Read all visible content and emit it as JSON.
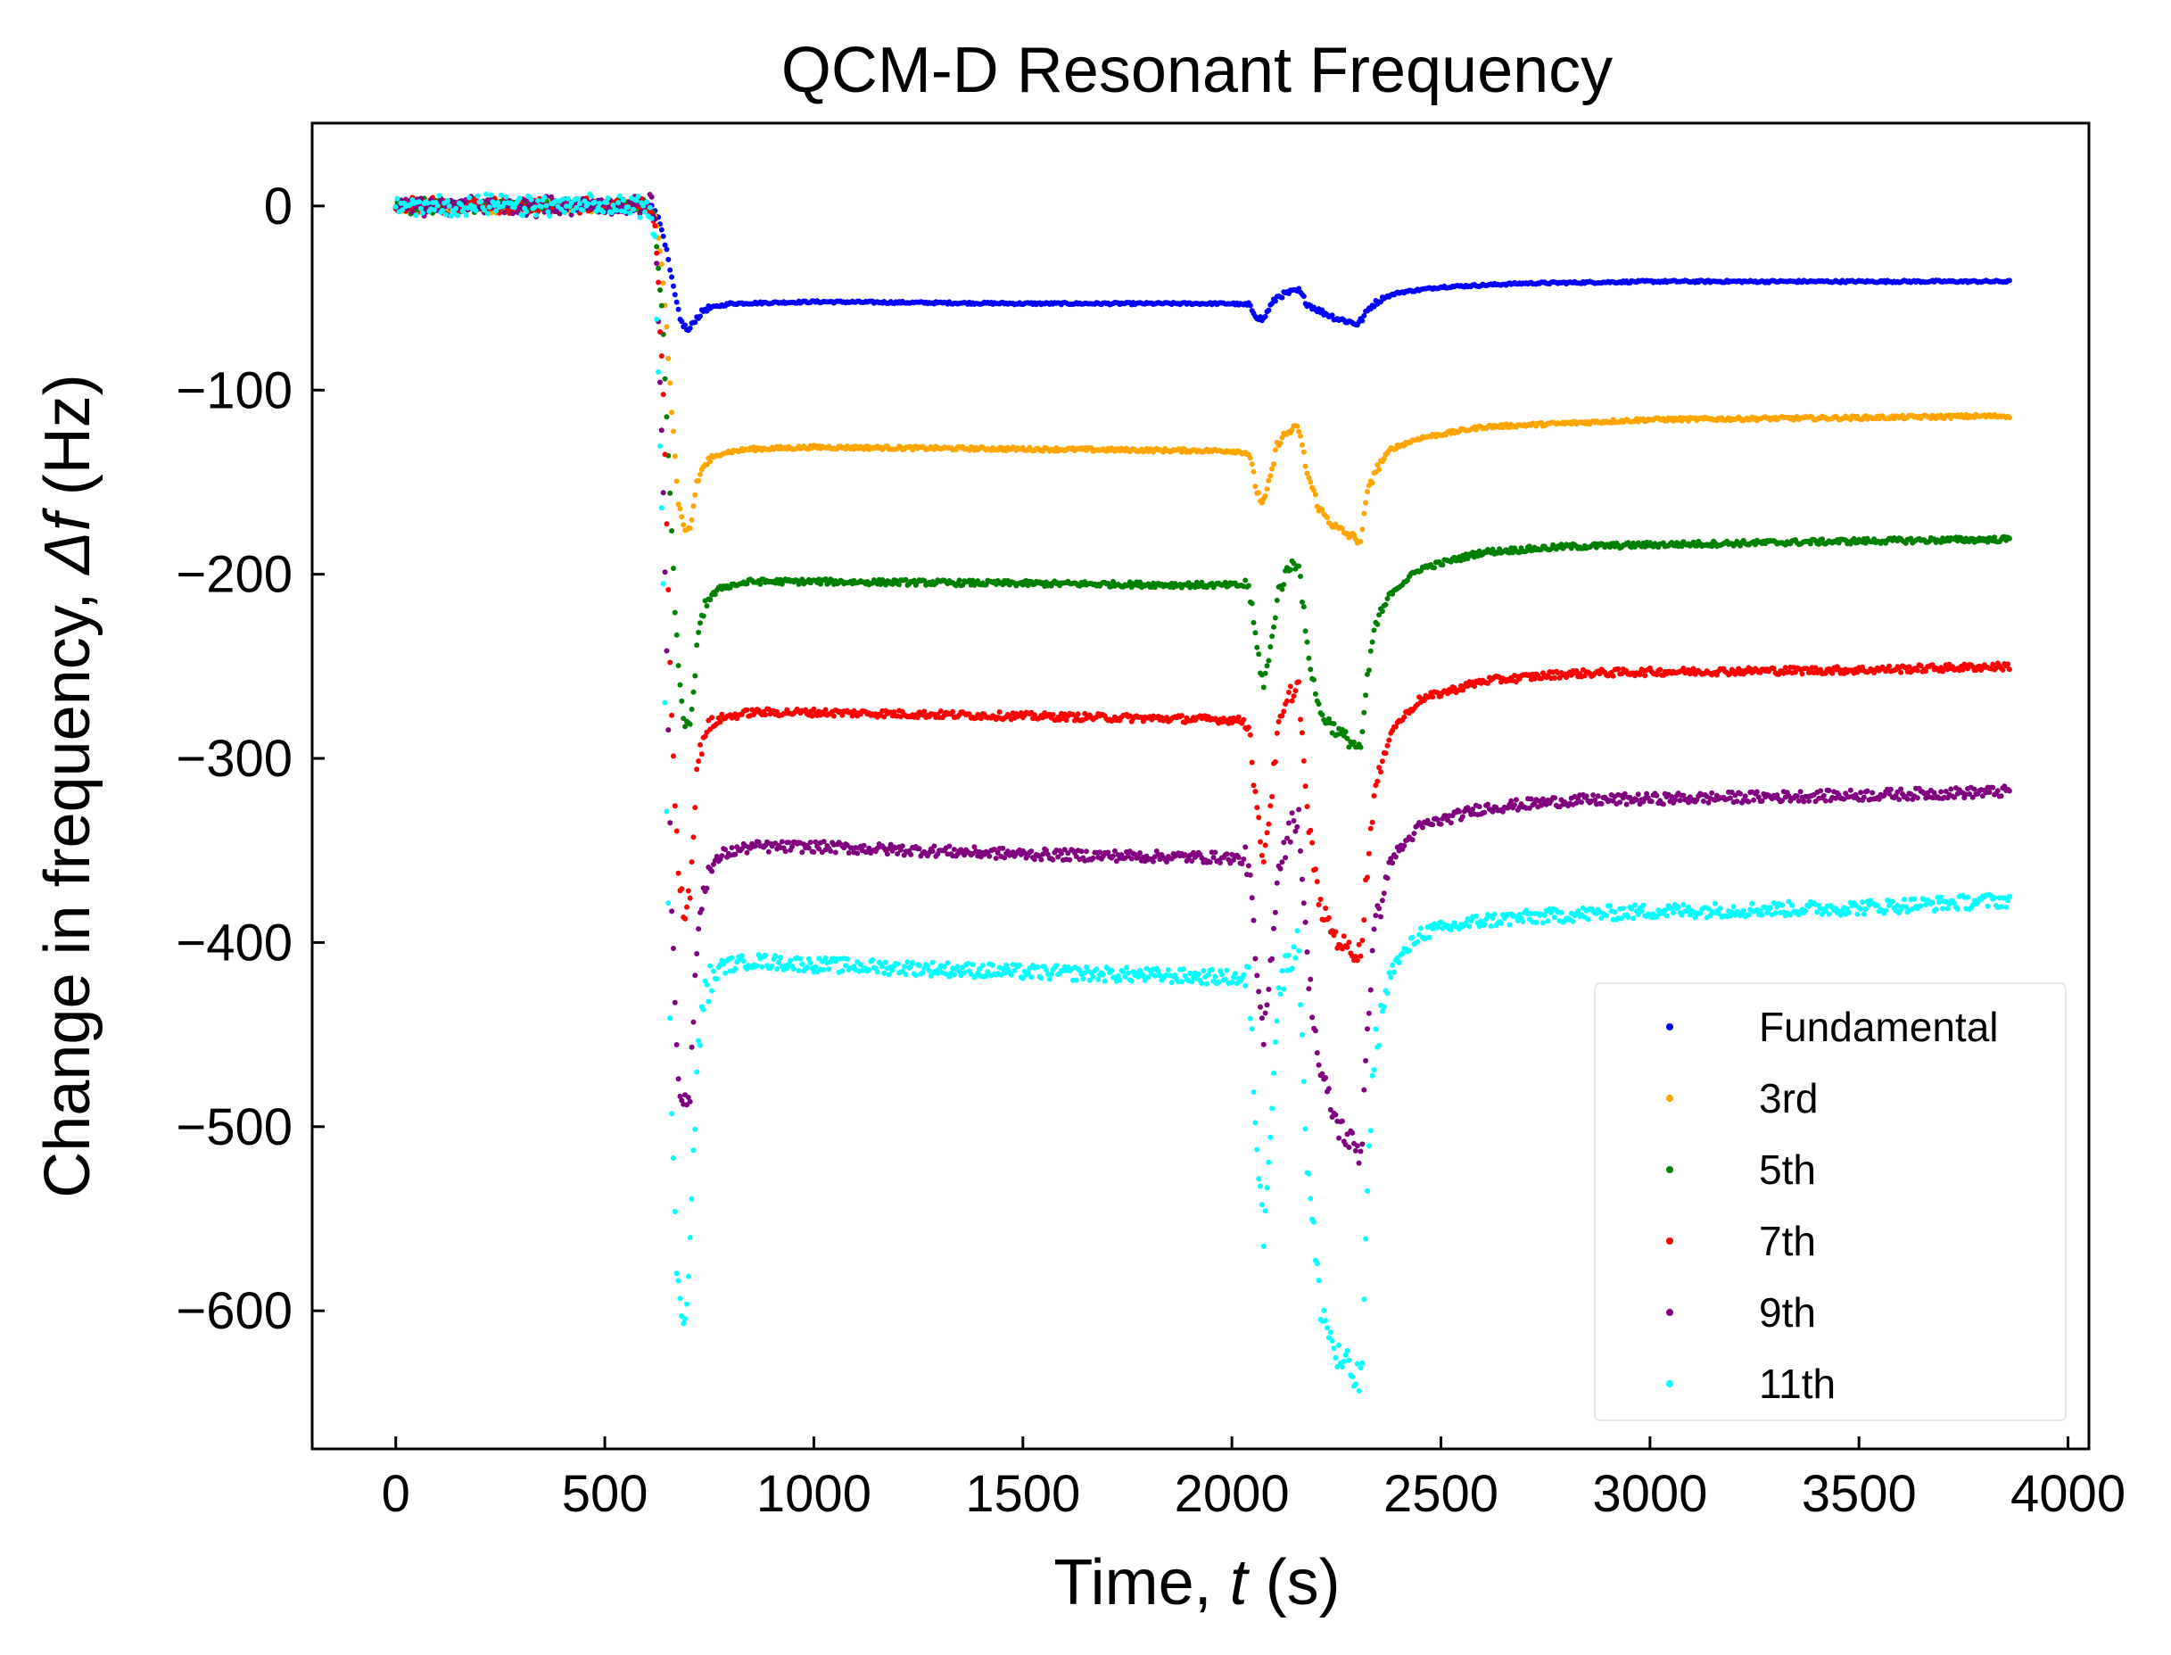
{
  "chart_data": {
    "type": "scatter",
    "title": "QCM-D Resonant Frequency",
    "xlabel_prefix": "Time, ",
    "xlabel_var": "t",
    "xlabel_suffix": " (s)",
    "ylabel_prefix": "Change in frequency, ",
    "ylabel_var": "Δf",
    "ylabel_suffix": " (Hz)",
    "xlim": [
      -200,
      4050
    ],
    "ylim": [
      -675,
      45
    ],
    "xticks": [
      0,
      500,
      1000,
      1500,
      2000,
      2500,
      3000,
      3500,
      4000
    ],
    "xtick_labels": [
      "0",
      "500",
      "1000",
      "1500",
      "2000",
      "2500",
      "3000",
      "3500",
      "4000"
    ],
    "yticks": [
      0,
      -100,
      -200,
      -300,
      -400,
      -500,
      -600
    ],
    "ytick_labels": [
      "0",
      "−100",
      "−200",
      "−300",
      "−400",
      "−500",
      "−600"
    ],
    "grid": false,
    "legend_position": "lower-right",
    "series": [
      {
        "name": "Fundamental",
        "color": "#0000ff",
        "noise": 0.6,
        "points": [
          [
            0,
            0
          ],
          [
            600,
            0
          ],
          [
            620,
            -2
          ],
          [
            640,
            -15
          ],
          [
            660,
            -40
          ],
          [
            680,
            -62
          ],
          [
            700,
            -68
          ],
          [
            715,
            -62
          ],
          [
            740,
            -56
          ],
          [
            800,
            -53
          ],
          [
            1000,
            -52
          ],
          [
            1500,
            -53
          ],
          [
            2000,
            -53
          ],
          [
            2040,
            -54
          ],
          [
            2060,
            -60
          ],
          [
            2075,
            -62
          ],
          [
            2090,
            -55
          ],
          [
            2110,
            -49
          ],
          [
            2140,
            -47
          ],
          [
            2160,
            -46
          ],
          [
            2180,
            -53
          ],
          [
            2210,
            -57
          ],
          [
            2250,
            -61
          ],
          [
            2300,
            -64
          ],
          [
            2310,
            -62
          ],
          [
            2330,
            -55
          ],
          [
            2360,
            -50
          ],
          [
            2400,
            -47
          ],
          [
            2500,
            -44
          ],
          [
            2700,
            -42
          ],
          [
            3000,
            -41
          ],
          [
            3500,
            -41
          ],
          [
            3860,
            -41
          ]
        ]
      },
      {
        "name": "3rd",
        "color": "#ffa500",
        "noise": 1.0,
        "points": [
          [
            0,
            0
          ],
          [
            600,
            0
          ],
          [
            620,
            -5
          ],
          [
            640,
            -40
          ],
          [
            660,
            -110
          ],
          [
            675,
            -160
          ],
          [
            690,
            -178
          ],
          [
            705,
            -175
          ],
          [
            720,
            -150
          ],
          [
            740,
            -140
          ],
          [
            780,
            -134
          ],
          [
            850,
            -132
          ],
          [
            1000,
            -131
          ],
          [
            1500,
            -132
          ],
          [
            2000,
            -133
          ],
          [
            2040,
            -134
          ],
          [
            2060,
            -155
          ],
          [
            2075,
            -162
          ],
          [
            2090,
            -150
          ],
          [
            2110,
            -128
          ],
          [
            2140,
            -122
          ],
          [
            2160,
            -121
          ],
          [
            2180,
            -145
          ],
          [
            2210,
            -165
          ],
          [
            2250,
            -175
          ],
          [
            2290,
            -180
          ],
          [
            2310,
            -182
          ],
          [
            2320,
            -160
          ],
          [
            2340,
            -145
          ],
          [
            2380,
            -132
          ],
          [
            2450,
            -126
          ],
          [
            2600,
            -120
          ],
          [
            2800,
            -118
          ],
          [
            3000,
            -116
          ],
          [
            3500,
            -115
          ],
          [
            3860,
            -114
          ]
        ]
      },
      {
        "name": "5th",
        "color": "#008000",
        "noise": 1.5,
        "points": [
          [
            0,
            0
          ],
          [
            600,
            0
          ],
          [
            620,
            -8
          ],
          [
            640,
            -70
          ],
          [
            660,
            -180
          ],
          [
            675,
            -250
          ],
          [
            690,
            -280
          ],
          [
            705,
            -285
          ],
          [
            720,
            -240
          ],
          [
            740,
            -215
          ],
          [
            780,
            -207
          ],
          [
            850,
            -204
          ],
          [
            1000,
            -204
          ],
          [
            1500,
            -205
          ],
          [
            2000,
            -206
          ],
          [
            2040,
            -206
          ],
          [
            2060,
            -240
          ],
          [
            2075,
            -260
          ],
          [
            2090,
            -245
          ],
          [
            2110,
            -210
          ],
          [
            2140,
            -195
          ],
          [
            2160,
            -193
          ],
          [
            2180,
            -240
          ],
          [
            2210,
            -275
          ],
          [
            2250,
            -285
          ],
          [
            2290,
            -292
          ],
          [
            2310,
            -295
          ],
          [
            2320,
            -265
          ],
          [
            2340,
            -230
          ],
          [
            2380,
            -210
          ],
          [
            2450,
            -197
          ],
          [
            2600,
            -188
          ],
          [
            2800,
            -185
          ],
          [
            3000,
            -184
          ],
          [
            3500,
            -182
          ],
          [
            3860,
            -181
          ]
        ]
      },
      {
        "name": "7th",
        "color": "#ff0000",
        "noise": 2.0,
        "points": [
          [
            0,
            0
          ],
          [
            600,
            0
          ],
          [
            620,
            -10
          ],
          [
            640,
            -100
          ],
          [
            660,
            -280
          ],
          [
            675,
            -360
          ],
          [
            690,
            -385
          ],
          [
            705,
            -370
          ],
          [
            720,
            -305
          ],
          [
            740,
            -285
          ],
          [
            780,
            -278
          ],
          [
            850,
            -275
          ],
          [
            1000,
            -275
          ],
          [
            1500,
            -277
          ],
          [
            2000,
            -279
          ],
          [
            2040,
            -280
          ],
          [
            2060,
            -330
          ],
          [
            2075,
            -355
          ],
          [
            2090,
            -330
          ],
          [
            2110,
            -285
          ],
          [
            2140,
            -265
          ],
          [
            2160,
            -260
          ],
          [
            2180,
            -330
          ],
          [
            2210,
            -380
          ],
          [
            2250,
            -398
          ],
          [
            2290,
            -405
          ],
          [
            2310,
            -405
          ],
          [
            2320,
            -370
          ],
          [
            2340,
            -320
          ],
          [
            2380,
            -285
          ],
          [
            2450,
            -268
          ],
          [
            2600,
            -258
          ],
          [
            2800,
            -254
          ],
          [
            3000,
            -253
          ],
          [
            3500,
            -252
          ],
          [
            3860,
            -250
          ]
        ]
      },
      {
        "name": "9th",
        "color": "#800080",
        "noise": 3.0,
        "points": [
          [
            0,
            0
          ],
          [
            600,
            0
          ],
          [
            610,
            10
          ],
          [
            620,
            -10
          ],
          [
            640,
            -150
          ],
          [
            660,
            -380
          ],
          [
            675,
            -470
          ],
          [
            690,
            -490
          ],
          [
            705,
            -480
          ],
          [
            720,
            -400
          ],
          [
            740,
            -365
          ],
          [
            780,
            -352
          ],
          [
            850,
            -348
          ],
          [
            1000,
            -348
          ],
          [
            1500,
            -352
          ],
          [
            2000,
            -354
          ],
          [
            2040,
            -356
          ],
          [
            2060,
            -420
          ],
          [
            2075,
            -455
          ],
          [
            2090,
            -420
          ],
          [
            2110,
            -360
          ],
          [
            2140,
            -338
          ],
          [
            2160,
            -330
          ],
          [
            2180,
            -410
          ],
          [
            2210,
            -470
          ],
          [
            2250,
            -498
          ],
          [
            2290,
            -510
          ],
          [
            2310,
            -515
          ],
          [
            2320,
            -460
          ],
          [
            2340,
            -395
          ],
          [
            2380,
            -355
          ],
          [
            2450,
            -337
          ],
          [
            2600,
            -327
          ],
          [
            2800,
            -323
          ],
          [
            3000,
            -322
          ],
          [
            3500,
            -320
          ],
          [
            3860,
            -318
          ]
        ]
      },
      {
        "name": "11th",
        "color": "#00ffff",
        "noise": 4.0,
        "points": [
          [
            0,
            0
          ],
          [
            600,
            0
          ],
          [
            620,
            -15
          ],
          [
            640,
            -200
          ],
          [
            660,
            -500
          ],
          [
            675,
            -590
          ],
          [
            690,
            -605
          ],
          [
            705,
            -560
          ],
          [
            720,
            -470
          ],
          [
            740,
            -425
          ],
          [
            780,
            -413
          ],
          [
            850,
            -410
          ],
          [
            1000,
            -412
          ],
          [
            1500,
            -416
          ],
          [
            2000,
            -419
          ],
          [
            2040,
            -420
          ],
          [
            2060,
            -510
          ],
          [
            2075,
            -560
          ],
          [
            2090,
            -505
          ],
          [
            2110,
            -430
          ],
          [
            2140,
            -405
          ],
          [
            2160,
            -402
          ],
          [
            2180,
            -520
          ],
          [
            2210,
            -595
          ],
          [
            2250,
            -625
          ],
          [
            2290,
            -635
          ],
          [
            2310,
            -640
          ],
          [
            2320,
            -560
          ],
          [
            2340,
            -460
          ],
          [
            2380,
            -415
          ],
          [
            2450,
            -395
          ],
          [
            2600,
            -388
          ],
          [
            2800,
            -385
          ],
          [
            3000,
            -383
          ],
          [
            3500,
            -381
          ],
          [
            3860,
            -377
          ]
        ]
      }
    ]
  }
}
